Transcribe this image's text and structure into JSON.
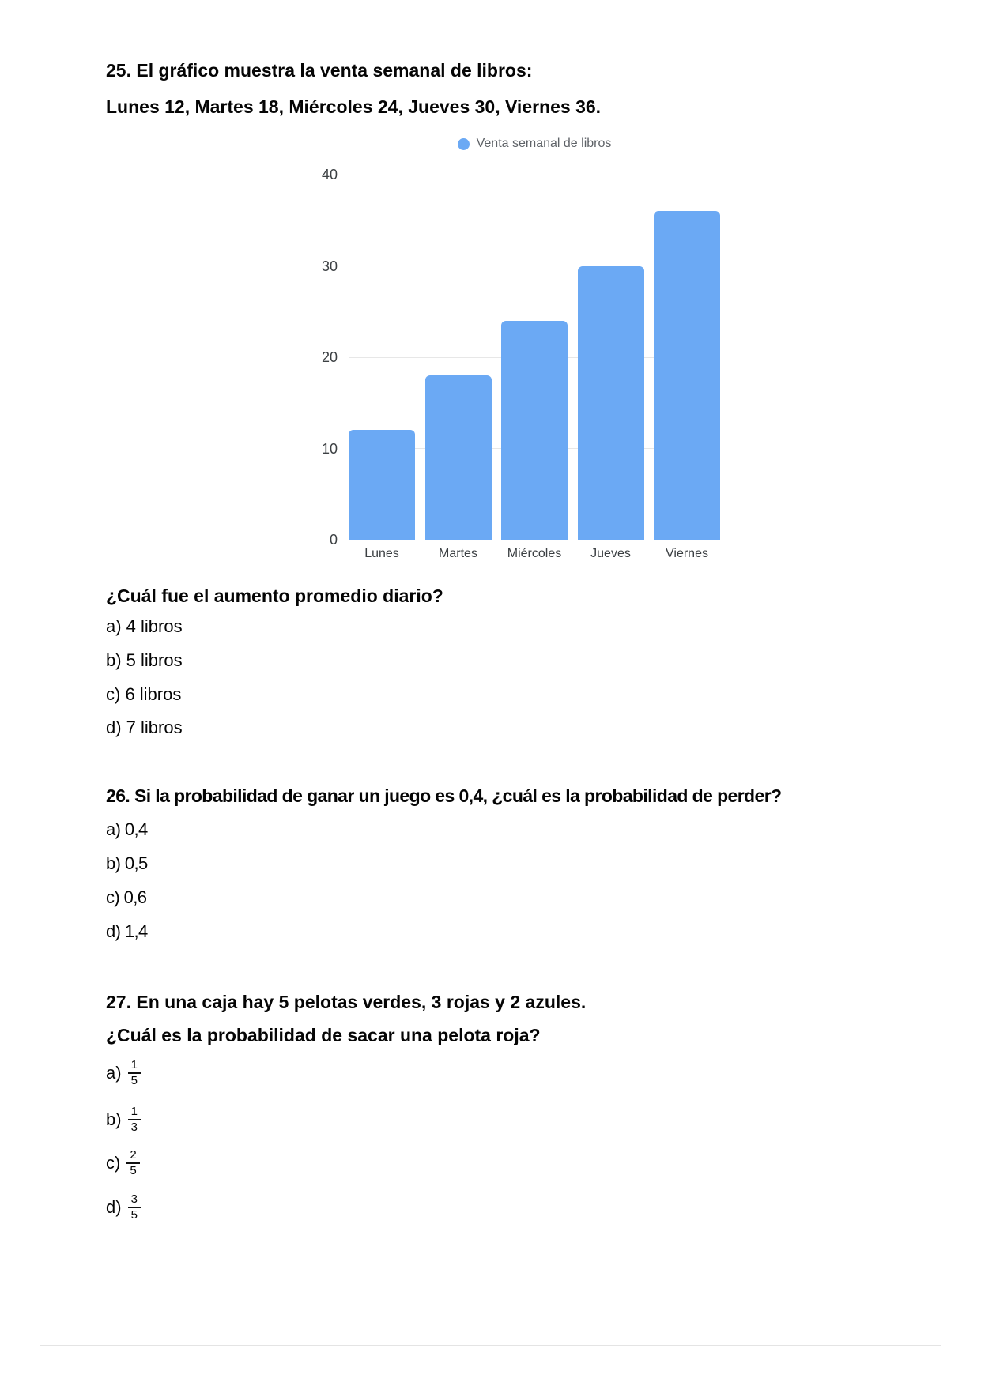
{
  "q25": {
    "title_line1": "25. El gráfico muestra la venta semanal de libros:",
    "title_line2": "Lunes 12, Martes 18, Miércoles 24, Jueves 30, Viernes 36.",
    "question": "¿Cuál fue el aumento promedio diario?",
    "options": [
      "a) 4 libros",
      "b) 5 libros",
      "c) 6 libros",
      "d) 7 libros"
    ]
  },
  "q26": {
    "title": "26. Si la probabilidad de ganar un juego es 0,4, ¿cuál es la probabilidad de perder?",
    "options": [
      "a) 0,4",
      "b) 0,5",
      "c) 0,6",
      "d) 1,4"
    ]
  },
  "q27": {
    "title_line1": "27. En una caja hay 5 pelotas verdes, 3 rojas y 2 azules.",
    "title_line2": "¿Cuál es la probabilidad de sacar una pelota roja?",
    "options": [
      {
        "label": "a)",
        "numerator": "1",
        "denominator": "5"
      },
      {
        "label": "b)",
        "numerator": "1",
        "denominator": "3"
      },
      {
        "label": "c)",
        "numerator": "2",
        "denominator": "5"
      },
      {
        "label": "d)",
        "numerator": "3",
        "denominator": "5"
      }
    ]
  },
  "chart_data": {
    "type": "bar",
    "title": "",
    "legend": "Venta semanal de libros",
    "legend_position": "top",
    "categories": [
      "Lunes",
      "Martes",
      "Miércoles",
      "Jueves",
      "Viernes"
    ],
    "values": [
      12,
      18,
      24,
      30,
      36
    ],
    "xlabel": "",
    "ylabel": "",
    "ylim": [
      0,
      40
    ],
    "yticks": [
      0,
      10,
      20,
      30,
      40
    ],
    "grid": true,
    "bar_color": "#6BA9F4",
    "gridline_color": "#e7e7e7",
    "tick_label_color": "#3c4043",
    "legend_text_color": "#5f6368"
  }
}
